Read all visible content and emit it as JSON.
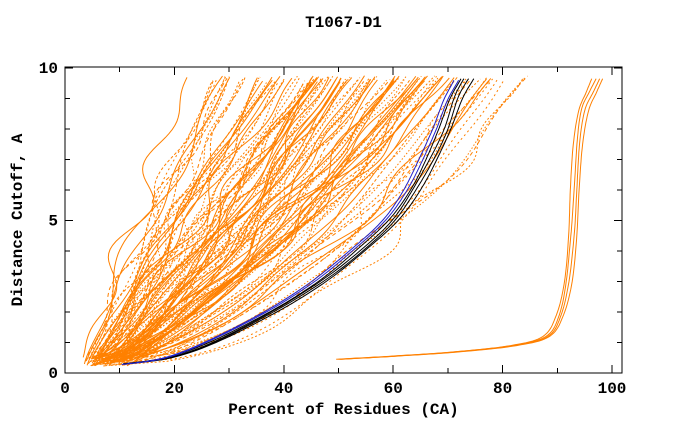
{
  "window": {
    "background": "#FFFFFF"
  },
  "chart_data": {
    "type": "line",
    "title": "T1067-D1",
    "xlabel": "Percent of Residues (CA)",
    "ylabel": "Distance Cutoff, A",
    "xlim": [
      0,
      100
    ],
    "ylim": [
      0,
      10
    ],
    "x_major_ticks": [
      0,
      20,
      40,
      60,
      80,
      100
    ],
    "x_minor_ticks": [
      10,
      30,
      50,
      70,
      90
    ],
    "y_major_ticks": [
      0,
      5,
      10
    ],
    "y_minor_ticks": [
      1,
      2,
      3,
      4,
      6,
      7,
      8,
      9
    ],
    "grid": "off",
    "legend": "none",
    "axis_color": "#000000",
    "text_color": "#000000",
    "background_color": "#FFFFFF",
    "colors": {
      "models": "#FF8000",
      "best_models": "#000000",
      "highlighted_model": "#2020C8"
    },
    "seed": 1067,
    "series_groups": [
      {
        "kind": "fan",
        "name": "model-curves",
        "description": "large ensemble of predicted-model accuracy curves",
        "color": "#FF8000",
        "count": 115,
        "x_start_range": [
          3,
          13
        ],
        "y_start_range": [
          0.22,
          0.55
        ],
        "x_end_range": [
          17,
          90
        ],
        "y_end_range": [
          9.55,
          9.75
        ],
        "dashed_fraction": 0.55,
        "dash_patterns": [
          "2 2",
          "3 2",
          "1.5 2",
          "4 3",
          "2 3"
        ],
        "wiggle_amp_range": [
          0.5,
          2.7
        ],
        "wiggle_freq_range": [
          1,
          3.5
        ]
      },
      {
        "kind": "bundle",
        "name": "outlier-model-curves",
        "description": "small cluster of outlier models hugging ~93-97% at high cutoffs",
        "color": "#FF8000",
        "count": 4,
        "spread": 1.0,
        "jitter": 0.25,
        "control_points": [
          [
            50,
            0.45
          ],
          [
            60,
            0.55
          ],
          [
            72,
            0.7
          ],
          [
            82,
            0.9
          ],
          [
            88,
            1.2
          ],
          [
            90.5,
            1.9
          ],
          [
            92,
            3.0
          ],
          [
            92.8,
            4.5
          ],
          [
            93.2,
            6.0
          ],
          [
            93.8,
            7.5
          ],
          [
            94.8,
            8.6
          ],
          [
            96.2,
            9.2
          ],
          [
            97.3,
            9.65
          ]
        ]
      },
      {
        "kind": "bundle",
        "name": "best-model-curves",
        "description": "black reference/best-model curves",
        "color": "#000000",
        "count": 4,
        "spread": 1.2,
        "jitter": 0.2,
        "control_points": [
          [
            11,
            0.3
          ],
          [
            19,
            0.5
          ],
          [
            27,
            1.0
          ],
          [
            38,
            2.0
          ],
          [
            47,
            3.0
          ],
          [
            54,
            4.0
          ],
          [
            60,
            5.0
          ],
          [
            64,
            6.0
          ],
          [
            67,
            7.0
          ],
          [
            69.5,
            8.0
          ],
          [
            71.5,
            9.0
          ],
          [
            73.5,
            9.65
          ]
        ]
      },
      {
        "kind": "bundle",
        "name": "highlighted-model-curves",
        "description": "blue highlighted model curves",
        "color": "#2020C8",
        "count": 2,
        "spread": 0.4,
        "jitter": 0.15,
        "control_points": [
          [
            10.5,
            0.28
          ],
          [
            18,
            0.48
          ],
          [
            25,
            0.95
          ],
          [
            36,
            1.95
          ],
          [
            45,
            2.95
          ],
          [
            52,
            3.95
          ],
          [
            58,
            4.95
          ],
          [
            62,
            5.95
          ],
          [
            65,
            6.95
          ],
          [
            67.5,
            7.95
          ],
          [
            69.5,
            8.95
          ],
          [
            71.5,
            9.6
          ]
        ]
      }
    ]
  }
}
